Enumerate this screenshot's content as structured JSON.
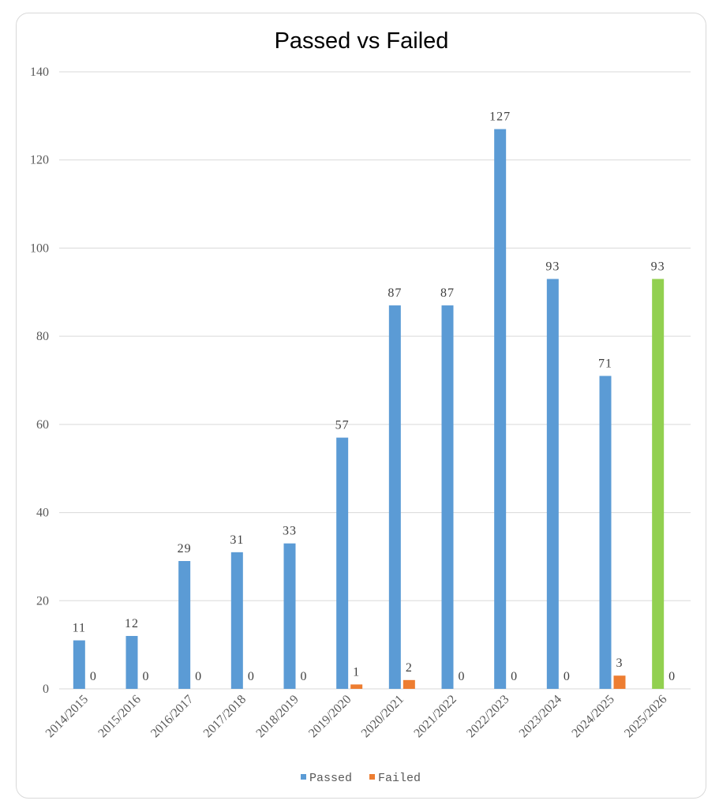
{
  "chart_data": {
    "type": "bar",
    "title": "Passed vs Failed",
    "xlabel": "",
    "ylabel": "",
    "ylim": [
      0,
      140
    ],
    "yticks": [
      0,
      20,
      40,
      60,
      80,
      100,
      120,
      140
    ],
    "grid": true,
    "legend_position": "bottom",
    "categories": [
      "2014/2015",
      "2015/2016",
      "2016/2017",
      "2017/2018",
      "2018/2019",
      "2019/2020",
      "2020/2021",
      "2021/2022",
      "2022/2023",
      "2023/2024",
      "2024/2025",
      "2025/2026"
    ],
    "series": [
      {
        "name": "Passed",
        "color": "#5b9bd5",
        "values": [
          11,
          12,
          29,
          31,
          33,
          57,
          87,
          87,
          127,
          93,
          71,
          93
        ],
        "point_colors": {
          "11": "#92d050"
        }
      },
      {
        "name": "Failed",
        "color": "#ed7d31",
        "values": [
          0,
          0,
          0,
          0,
          0,
          1,
          2,
          0,
          0,
          0,
          3,
          0
        ]
      }
    ]
  }
}
